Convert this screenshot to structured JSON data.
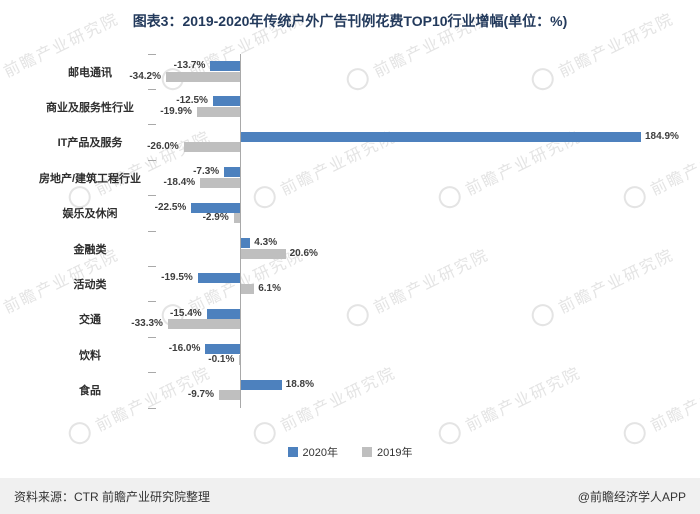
{
  "title": "图表3：2019-2020年传统户外广告刊例花费TOP10行业增幅(单位：%)",
  "chart_data": {
    "type": "bar",
    "orientation": "horizontal",
    "title": "图表3：2019-2020年传统户外广告刊例花费TOP10行业增幅(单位：%)",
    "value_suffix": "%",
    "xlim": [
      -40,
      200
    ],
    "grid": false,
    "legend_position": "bottom",
    "categories": [
      "邮电通讯",
      "商业及服务性行业",
      "IT产品及服务",
      "房地产/建筑工程行业",
      "娱乐及休闲",
      "金融类",
      "活动类",
      "交通",
      "饮料",
      "食品"
    ],
    "series": [
      {
        "name": "2020年",
        "color": "#4D81BE",
        "values": [
          -13.7,
          -12.5,
          184.9,
          -7.3,
          -22.5,
          4.3,
          -19.5,
          -15.4,
          -16.0,
          18.8
        ]
      },
      {
        "name": "2019年",
        "color": "#BFBFBF",
        "values": [
          -34.2,
          -19.9,
          -26.0,
          -18.4,
          -2.9,
          20.6,
          6.1,
          -33.3,
          -0.1,
          -9.7
        ]
      }
    ]
  },
  "legend": {
    "items": [
      {
        "label": "2020年",
        "color": "#4D81BE"
      },
      {
        "label": "2019年",
        "color": "#BFBFBF"
      }
    ]
  },
  "watermark": {
    "text": "前瞻产业研究院",
    "logo_icon": "qianzhan-ring-icon"
  },
  "footer": {
    "source": "资料来源：CTR 前瞻产业研究院整理",
    "credit": "@前瞻经济学人APP"
  }
}
